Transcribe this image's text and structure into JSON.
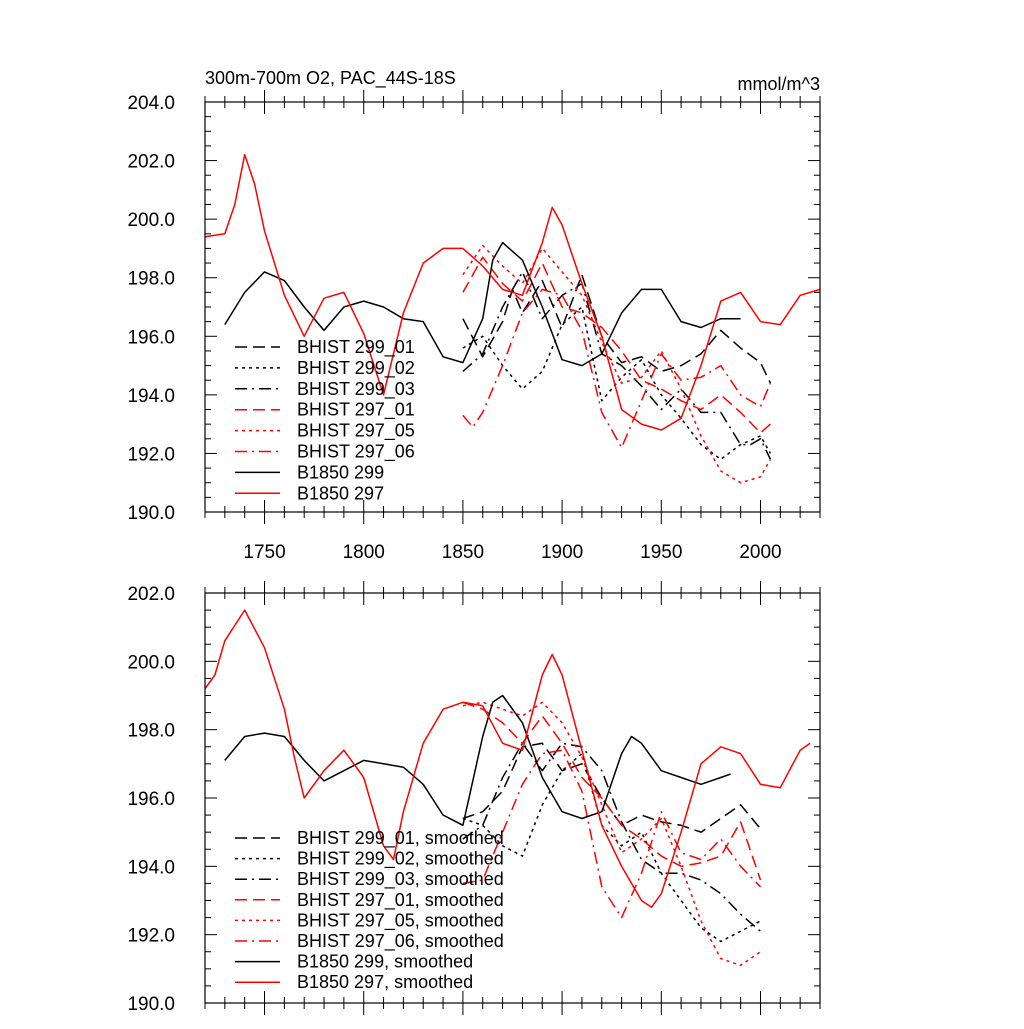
{
  "chart_data": [
    {
      "type": "line",
      "title": "300m-700m O2, PAC_44S-18S",
      "units": "mmol/m^3",
      "xlabel": "",
      "ylabel": "",
      "xlim": [
        1720,
        2030
      ],
      "ylim": [
        190,
        204
      ],
      "xticks": [
        1750,
        1800,
        1850,
        1900,
        1950,
        2000
      ],
      "xtick_labels": [
        "1750",
        "1800",
        "1850",
        "1900",
        "1950",
        "2000"
      ],
      "yticks": [
        190,
        192,
        194,
        196,
        198,
        200,
        202,
        204
      ],
      "ytick_labels": [
        "190.0",
        "192.0",
        "194.0",
        "196.0",
        "198.0",
        "200.0",
        "202.0",
        "204.0"
      ],
      "legend_position": "bottom-left",
      "series": [
        {
          "name": "BHIST 299_01",
          "color": "#000000",
          "dash": "dash",
          "x": [
            1850,
            1860,
            1870,
            1875,
            1880,
            1890,
            1900,
            1910,
            1920,
            1930,
            1940,
            1950,
            1960,
            1970,
            1980,
            1990,
            2000,
            2005
          ],
          "y": [
            196.6,
            195.3,
            196.5,
            197.6,
            196.8,
            197.9,
            196.3,
            198.1,
            196.0,
            195.1,
            195.3,
            194.8,
            195.0,
            195.4,
            196.2,
            195.6,
            195.1,
            194.4
          ]
        },
        {
          "name": "BHIST 299_02",
          "color": "#000000",
          "dash": "dot",
          "x": [
            1850,
            1860,
            1870,
            1880,
            1890,
            1900,
            1910,
            1920,
            1930,
            1940,
            1950,
            1960,
            1970,
            1980,
            1990,
            2000,
            2005
          ],
          "y": [
            195.6,
            196.0,
            195.0,
            194.2,
            194.8,
            196.4,
            197.0,
            193.8,
            194.6,
            195.2,
            194.0,
            193.2,
            192.3,
            191.8,
            192.3,
            192.6,
            192.0
          ]
        },
        {
          "name": "BHIST 299_03",
          "color": "#000000",
          "dash": "dashdot",
          "x": [
            1850,
            1860,
            1870,
            1880,
            1890,
            1900,
            1910,
            1920,
            1930,
            1940,
            1950,
            1960,
            1970,
            1980,
            1990,
            1995,
            2000,
            2005
          ],
          "y": [
            194.8,
            195.4,
            197.0,
            198.2,
            196.6,
            197.4,
            197.8,
            195.4,
            195.0,
            194.3,
            193.5,
            194.2,
            193.4,
            193.4,
            192.3,
            192.3,
            192.5,
            191.8
          ]
        },
        {
          "name": "BHIST 297_01",
          "color": "#ff0000",
          "dash": "dash",
          "x": [
            1850,
            1860,
            1870,
            1880,
            1890,
            1900,
            1910,
            1920,
            1930,
            1940,
            1950,
            1960,
            1970,
            1980,
            1990,
            2000,
            2005
          ],
          "y": [
            197.5,
            198.7,
            197.8,
            197.2,
            198.5,
            197.0,
            196.8,
            196.3,
            195.5,
            194.5,
            194.2,
            193.8,
            193.5,
            194.0,
            193.4,
            192.7,
            193.0
          ]
        },
        {
          "name": "BHIST 297_05",
          "color": "#ff0000",
          "dash": "dot",
          "x": [
            1850,
            1860,
            1870,
            1880,
            1890,
            1900,
            1910,
            1920,
            1930,
            1940,
            1950,
            1960,
            1970,
            1980,
            1990,
            2000,
            2005
          ],
          "y": [
            198.1,
            199.1,
            198.4,
            197.8,
            199.0,
            198.2,
            197.4,
            195.8,
            194.4,
            194.6,
            195.5,
            194.2,
            192.6,
            191.4,
            191.0,
            191.2,
            191.8
          ]
        },
        {
          "name": "BHIST 297_06",
          "color": "#ff0000",
          "dash": "dashdot",
          "x": [
            1850,
            1855,
            1860,
            1870,
            1880,
            1890,
            1900,
            1910,
            1920,
            1930,
            1940,
            1950,
            1960,
            1970,
            1980,
            1990,
            2000,
            2005
          ],
          "y": [
            193.3,
            192.9,
            193.4,
            195.0,
            196.8,
            197.6,
            197.4,
            196.2,
            193.4,
            192.2,
            193.8,
            195.4,
            194.5,
            194.6,
            195.0,
            194.0,
            193.6,
            194.4
          ]
        },
        {
          "name": "B1850 299",
          "color": "#000000",
          "dash": "solid",
          "x": [
            1730,
            1740,
            1750,
            1760,
            1770,
            1780,
            1790,
            1800,
            1810,
            1820,
            1830,
            1840,
            1850,
            1860,
            1865,
            1870,
            1880,
            1890,
            1900,
            1910,
            1920,
            1930,
            1940,
            1950,
            1960,
            1970,
            1980,
            1990
          ],
          "y": [
            196.4,
            197.5,
            198.2,
            197.9,
            197.0,
            196.2,
            197.0,
            197.2,
            197.0,
            196.6,
            196.5,
            195.3,
            195.1,
            196.6,
            198.6,
            199.2,
            198.6,
            197.0,
            195.2,
            195.0,
            195.4,
            196.8,
            197.6,
            197.6,
            196.5,
            196.3,
            196.6,
            196.6
          ]
        },
        {
          "name": "B1850 297",
          "color": "#ff0000",
          "dash": "solid",
          "x": [
            1720,
            1730,
            1735,
            1740,
            1745,
            1750,
            1760,
            1770,
            1780,
            1790,
            1800,
            1810,
            1820,
            1830,
            1840,
            1850,
            1860,
            1870,
            1880,
            1890,
            1895,
            1900,
            1910,
            1920,
            1930,
            1940,
            1950,
            1960,
            1970,
            1980,
            1990,
            2000,
            2010,
            2020,
            2030
          ],
          "y": [
            199.4,
            199.5,
            200.5,
            202.2,
            201.2,
            199.6,
            197.4,
            196.0,
            197.3,
            197.5,
            196.1,
            194.0,
            196.8,
            198.5,
            199.0,
            199.0,
            198.4,
            197.6,
            197.4,
            199.2,
            200.4,
            199.8,
            197.8,
            196.0,
            193.5,
            193.0,
            192.8,
            193.2,
            195.0,
            197.2,
            197.5,
            196.5,
            196.4,
            197.4,
            197.6
          ]
        }
      ]
    },
    {
      "type": "line",
      "title": "",
      "xlabel": "",
      "ylabel": "",
      "xlim": [
        1720,
        2030
      ],
      "ylim": [
        190,
        202
      ],
      "xticks": [
        1750,
        1800,
        1850,
        1900,
        1950,
        2000
      ],
      "yticks": [
        190,
        192,
        194,
        196,
        198,
        200,
        202
      ],
      "ytick_labels": [
        "190.0",
        "192.0",
        "194.0",
        "196.0",
        "198.0",
        "200.0",
        "202.0"
      ],
      "legend_position": "bottom-left",
      "series": [
        {
          "name": "BHIST 299_01, smoothed",
          "color": "#000000",
          "dash": "dash",
          "x": [
            1850,
            1860,
            1870,
            1880,
            1890,
            1900,
            1910,
            1920,
            1930,
            1940,
            1950,
            1960,
            1970,
            1980,
            1990,
            2000
          ],
          "y": [
            195.4,
            195.6,
            196.2,
            197.5,
            197.6,
            196.8,
            197.0,
            196.0,
            195.2,
            195.5,
            195.3,
            195.2,
            195.0,
            195.4,
            195.8,
            195.1
          ]
        },
        {
          "name": "BHIST 299_02, smoothed",
          "color": "#000000",
          "dash": "dot",
          "x": [
            1850,
            1860,
            1870,
            1880,
            1890,
            1900,
            1910,
            1920,
            1930,
            1940,
            1950,
            1960,
            1970,
            1980,
            1990,
            2000
          ],
          "y": [
            195.4,
            195.2,
            194.6,
            194.3,
            195.8,
            196.8,
            197.3,
            195.2,
            194.6,
            195.0,
            193.8,
            193.0,
            192.2,
            191.8,
            192.1,
            192.4
          ]
        },
        {
          "name": "BHIST 299_03, smoothed",
          "color": "#000000",
          "dash": "dashdot",
          "x": [
            1850,
            1860,
            1870,
            1880,
            1890,
            1900,
            1910,
            1920,
            1930,
            1940,
            1950,
            1960,
            1970,
            1980,
            1990,
            2000
          ],
          "y": [
            194.8,
            195.2,
            196.6,
            197.6,
            196.8,
            197.6,
            197.5,
            196.8,
            195.3,
            194.2,
            193.8,
            193.8,
            193.6,
            193.2,
            192.6,
            192.1
          ]
        },
        {
          "name": "BHIST 297_01, smoothed",
          "color": "#ff0000",
          "dash": "dash",
          "x": [
            1850,
            1860,
            1870,
            1880,
            1890,
            1900,
            1910,
            1920,
            1930,
            1940,
            1950,
            1960,
            1970,
            1980,
            1990,
            2000
          ],
          "y": [
            198.8,
            198.6,
            198.2,
            197.6,
            198.4,
            197.6,
            196.6,
            196.0,
            195.2,
            194.8,
            194.3,
            194.0,
            194.1,
            194.3,
            195.3,
            193.6
          ]
        },
        {
          "name": "BHIST 297_05, smoothed",
          "color": "#ff0000",
          "dash": "dot",
          "x": [
            1850,
            1860,
            1870,
            1880,
            1890,
            1900,
            1910,
            1920,
            1930,
            1940,
            1950,
            1960,
            1970,
            1980,
            1990,
            2000
          ],
          "y": [
            198.7,
            198.8,
            198.6,
            198.4,
            198.8,
            198.2,
            197.2,
            195.8,
            194.4,
            194.8,
            195.4,
            194.0,
            192.4,
            191.3,
            191.1,
            191.5
          ]
        },
        {
          "name": "BHIST 297_06, smoothed",
          "color": "#ff0000",
          "dash": "dashdot",
          "x": [
            1850,
            1860,
            1870,
            1880,
            1890,
            1900,
            1910,
            1920,
            1930,
            1940,
            1950,
            1960,
            1970,
            1980,
            1990,
            2000
          ],
          "y": [
            193.5,
            193.6,
            195.0,
            196.4,
            197.3,
            197.4,
            196.2,
            193.4,
            192.5,
            193.8,
            195.6,
            194.4,
            194.2,
            194.8,
            194.0,
            193.4
          ]
        },
        {
          "name": "B1850 299, smoothed",
          "color": "#000000",
          "dash": "solid",
          "x": [
            1730,
            1740,
            1750,
            1760,
            1770,
            1780,
            1790,
            1800,
            1810,
            1820,
            1830,
            1840,
            1850,
            1860,
            1865,
            1870,
            1880,
            1890,
            1900,
            1910,
            1920,
            1930,
            1935,
            1940,
            1950,
            1960,
            1970,
            1980,
            1985
          ],
          "y": [
            197.1,
            197.8,
            197.9,
            197.8,
            197.1,
            196.5,
            196.8,
            197.1,
            197.0,
            196.9,
            196.4,
            195.5,
            195.2,
            197.8,
            198.8,
            199.0,
            198.2,
            196.6,
            195.6,
            195.4,
            195.6,
            197.3,
            197.8,
            197.6,
            196.8,
            196.6,
            196.4,
            196.6,
            196.7
          ]
        },
        {
          "name": "B1850 297, smoothed",
          "color": "#ff0000",
          "dash": "solid",
          "x": [
            1720,
            1725,
            1730,
            1740,
            1750,
            1760,
            1765,
            1770,
            1780,
            1790,
            1800,
            1810,
            1815,
            1820,
            1830,
            1840,
            1850,
            1860,
            1870,
            1880,
            1890,
            1895,
            1900,
            1910,
            1920,
            1930,
            1940,
            1945,
            1950,
            1960,
            1970,
            1980,
            1990,
            2000,
            2010,
            2020,
            2025
          ],
          "y": [
            199.2,
            199.6,
            200.6,
            201.5,
            200.4,
            198.6,
            197.2,
            196.0,
            196.8,
            197.4,
            196.6,
            194.6,
            194.2,
            195.6,
            197.6,
            198.6,
            198.8,
            198.7,
            197.6,
            197.4,
            199.6,
            200.2,
            199.6,
            197.4,
            195.2,
            194.0,
            193.0,
            192.8,
            193.2,
            195.0,
            197.0,
            197.5,
            197.3,
            196.4,
            196.3,
            197.4,
            197.6
          ]
        }
      ]
    }
  ]
}
